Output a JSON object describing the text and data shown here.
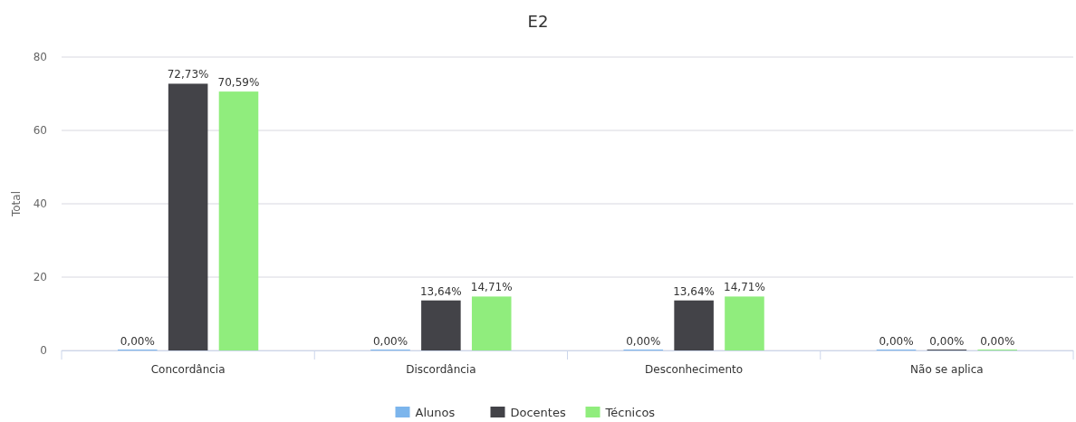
{
  "chart_data": {
    "type": "bar",
    "title": "E2",
    "ylabel": "Total",
    "categories": [
      "Concordância",
      "Discordância",
      "Desconhecimento",
      "Não se aplica"
    ],
    "series": [
      {
        "name": "Alunos",
        "color": "#7cb5ec",
        "values": [
          0,
          0,
          0,
          0
        ],
        "value_labels": [
          "0,00%",
          "0,00%",
          "0,00%",
          "0,00%"
        ]
      },
      {
        "name": "Docentes",
        "color": "#434348",
        "values": [
          72.73,
          13.64,
          13.64,
          0
        ],
        "value_labels": [
          "72,73%",
          "13,64%",
          "13,64%",
          "0,00%"
        ]
      },
      {
        "name": "Técnicos",
        "color": "#90ed7d",
        "values": [
          70.59,
          14.71,
          14.71,
          0
        ],
        "value_labels": [
          "70,59%",
          "14,71%",
          "14,71%",
          "0,00%"
        ]
      }
    ],
    "ylim": [
      0,
      80
    ],
    "yticks": [
      0,
      20,
      40,
      60,
      80
    ],
    "grid": "y",
    "legend": "bottom"
  }
}
